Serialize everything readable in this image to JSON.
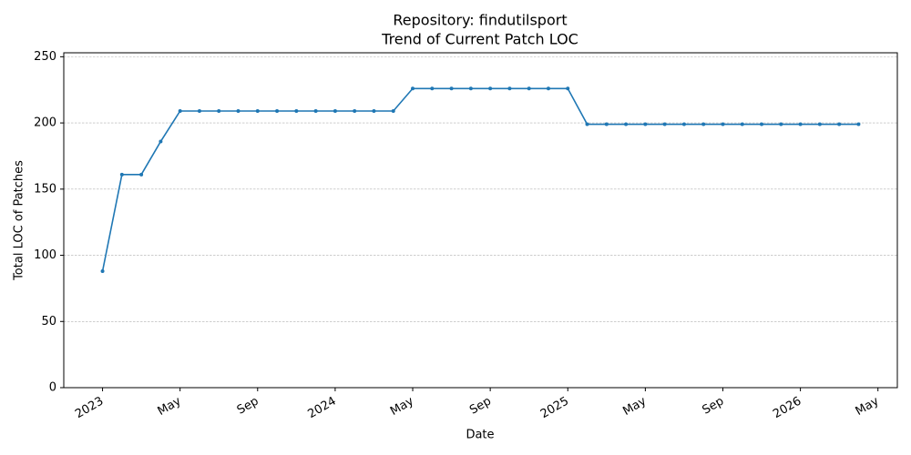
{
  "chart_data": {
    "type": "line",
    "title": "Repository: findutilsport",
    "subtitle": "Trend of Current Patch LOC",
    "x_label": "Date",
    "y_label": "Total LOC of Patches",
    "x": [
      "2023-01",
      "2023-02",
      "2023-03",
      "2023-04",
      "2023-05",
      "2023-06",
      "2023-07",
      "2023-08",
      "2023-09",
      "2023-10",
      "2023-11",
      "2023-12",
      "2024-01",
      "2024-02",
      "2024-03",
      "2024-04",
      "2024-05",
      "2024-06",
      "2024-07",
      "2024-08",
      "2024-09",
      "2024-10",
      "2024-11",
      "2024-12",
      "2025-01",
      "2025-02",
      "2025-03",
      "2025-04",
      "2025-05",
      "2025-06",
      "2025-07",
      "2025-08",
      "2025-09",
      "2025-10",
      "2025-11",
      "2025-12",
      "2026-01",
      "2026-02",
      "2026-03",
      "2026-04"
    ],
    "series": [
      {
        "name": "Total LOC",
        "color": "#1f77b4",
        "values": [
          88,
          161,
          161,
          186,
          209,
          209,
          209,
          209,
          209,
          209,
          209,
          209,
          209,
          209,
          209,
          209,
          226,
          226,
          226,
          226,
          226,
          226,
          226,
          226,
          226,
          199,
          199,
          199,
          199,
          199,
          199,
          199,
          199,
          199,
          199,
          199,
          199,
          199,
          199,
          199
        ]
      }
    ],
    "xlim": [
      "2022-11",
      "2026-06"
    ],
    "xticks": [
      {
        "value": "2023-01",
        "label": "2023"
      },
      {
        "value": "2023-05",
        "label": "May"
      },
      {
        "value": "2023-09",
        "label": "Sep"
      },
      {
        "value": "2024-01",
        "label": "2024"
      },
      {
        "value": "2024-05",
        "label": "May"
      },
      {
        "value": "2024-09",
        "label": "Sep"
      },
      {
        "value": "2025-01",
        "label": "2025"
      },
      {
        "value": "2025-05",
        "label": "May"
      },
      {
        "value": "2025-09",
        "label": "Sep"
      },
      {
        "value": "2026-01",
        "label": "2026"
      },
      {
        "value": "2026-05",
        "label": "May"
      }
    ],
    "ylim": [
      0,
      253
    ],
    "yticks": [
      0,
      50,
      100,
      150,
      200,
      250
    ],
    "grid": true
  }
}
